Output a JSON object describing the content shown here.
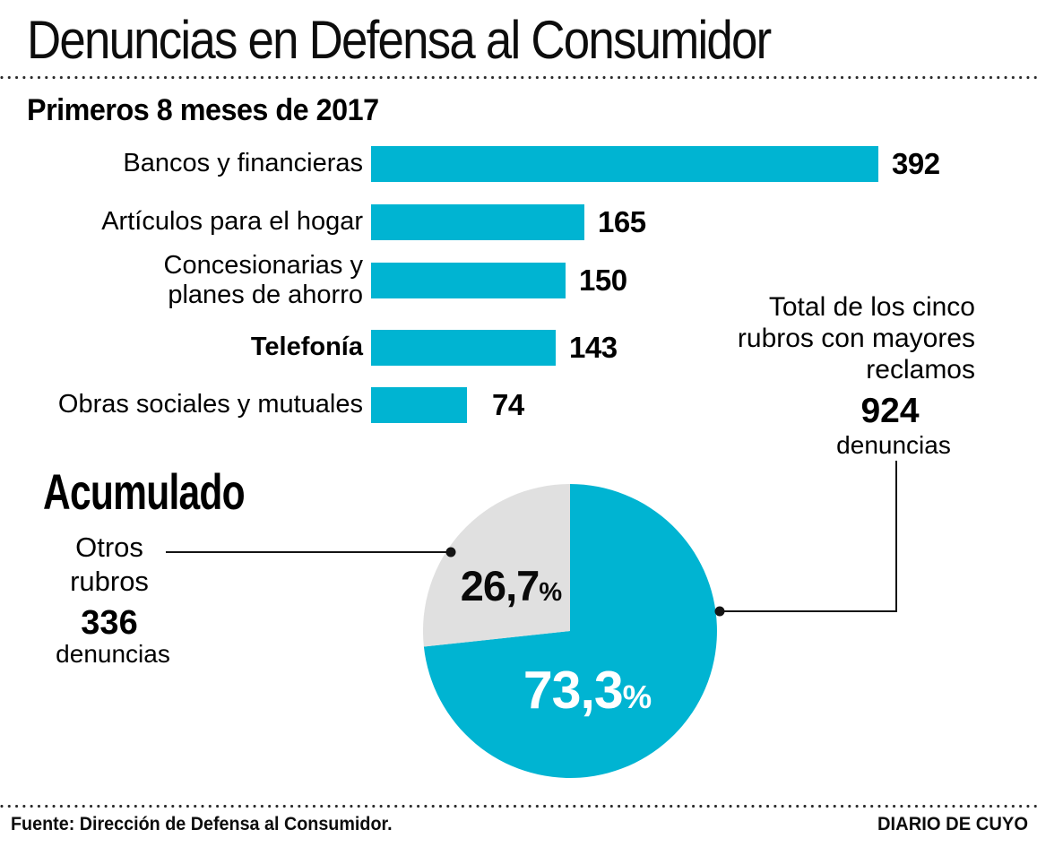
{
  "header": {
    "title": "Denuncias en Defensa al Consumidor",
    "subtitle": "Primeros 8 meses de 2017"
  },
  "colors": {
    "accent_cyan": "#00b4d2",
    "slice_gray": "#e0e0e0",
    "line_black": "#141414"
  },
  "chart_data": [
    {
      "type": "bar",
      "title": "Primeros 8 meses de 2017",
      "orientation": "horizontal",
      "categories": [
        "Bancos y financieras",
        "Artículos para el hogar",
        "Concesionarias y\nplanes de ahorro",
        "Telefonía",
        "Obras sociales y mutuales"
      ],
      "values": [
        392,
        165,
        150,
        143,
        74
      ],
      "xlim": [
        0,
        392
      ],
      "bar_color": "#00b4d2",
      "value_labels_shown": true,
      "grid": false
    },
    {
      "type": "pie",
      "title": "Acumulado",
      "percent_symbol": "%",
      "start_angle_deg": 0,
      "direction": "clockwise",
      "slices": [
        {
          "name": "Cinco rubros con mayores reclamos",
          "pct": 73.3,
          "pct_display": "73,3",
          "count": 924,
          "color": "#00b4d2"
        },
        {
          "name": "Otros rubros",
          "pct": 26.7,
          "pct_display": "26,7",
          "count": 336,
          "color": "#e0e0e0"
        }
      ]
    }
  ],
  "annotations": {
    "total": {
      "label": "Total de los cinco\nrubros con mayores\nreclamos",
      "value": "924",
      "unit": "denuncias"
    },
    "others": {
      "label": "Otros\nrubros",
      "value": "336",
      "unit": "denuncias"
    }
  },
  "footer": {
    "source": "Fuente: Dirección de Defensa al Consumidor.",
    "credit": "DIARIO DE CUYO"
  }
}
